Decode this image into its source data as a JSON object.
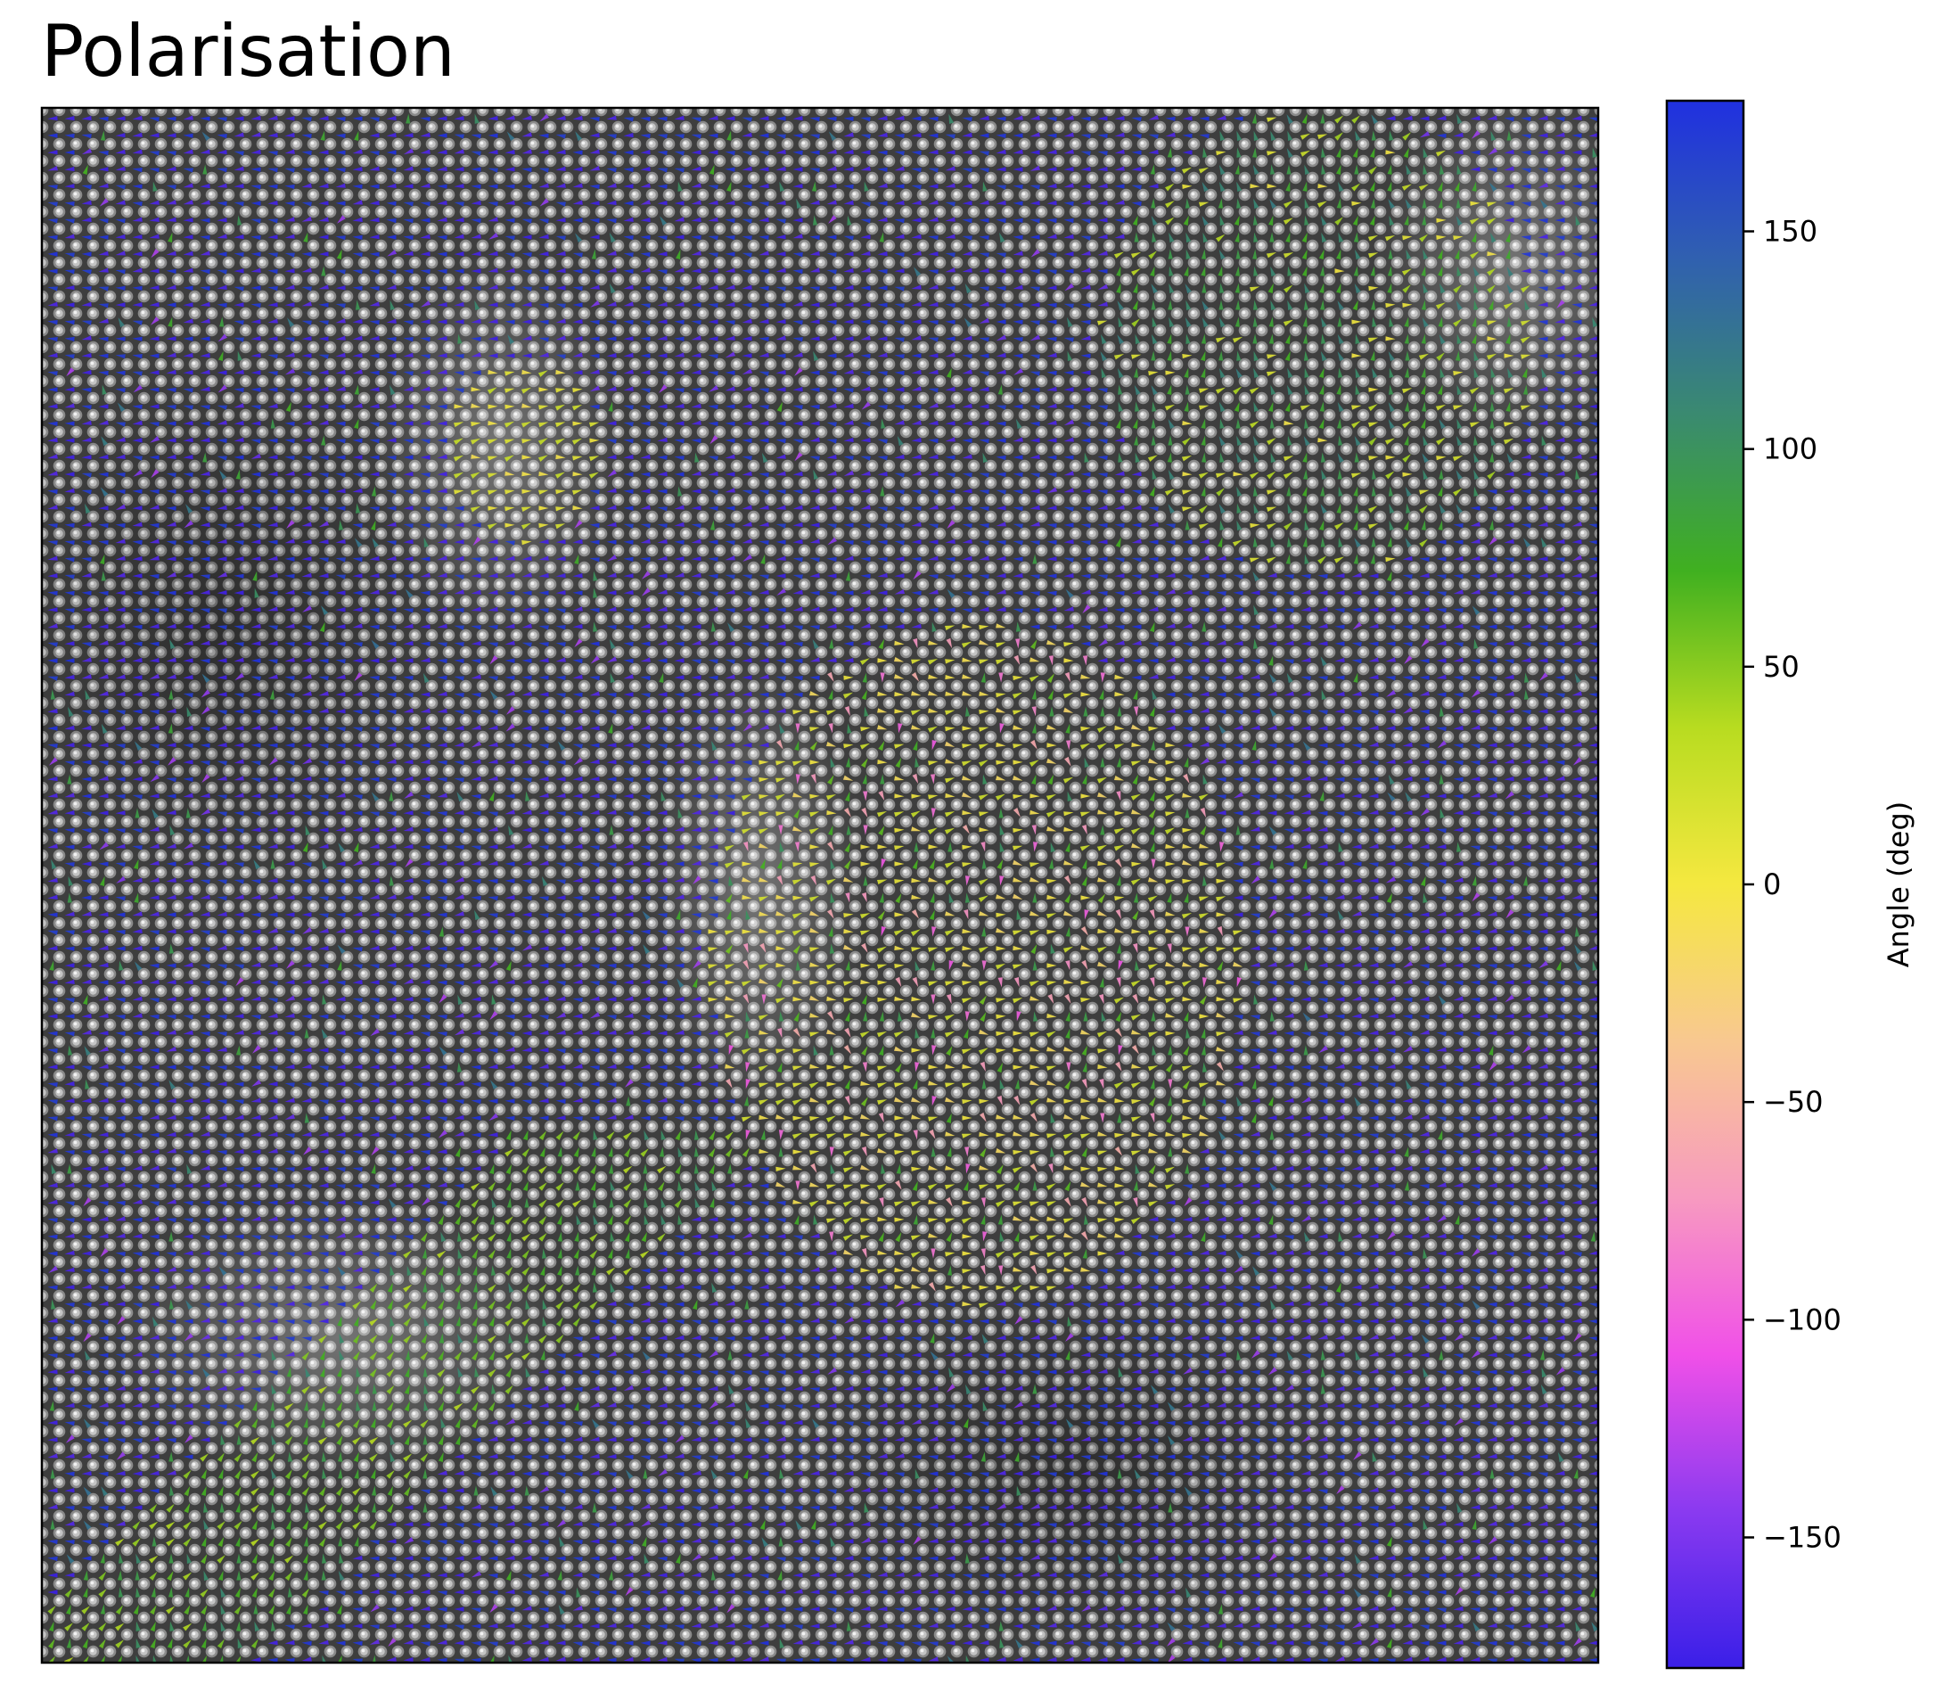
{
  "chart_data": {
    "type": "quiver",
    "title": "Polarisation",
    "xlabel": "",
    "ylabel": "",
    "colorbar": {
      "label": "Angle (deg)",
      "range": [
        -180,
        180
      ],
      "ticks": [
        150,
        100,
        50,
        0,
        -50,
        -100,
        -150
      ],
      "tick_labels": [
        "150",
        "100",
        "50",
        "0",
        "−50",
        "−100",
        "−150"
      ],
      "colors": [
        "#3a1fe8",
        "#8a3af0",
        "#f050e8",
        "#f79ac0",
        "#f8c890",
        "#f5e840",
        "#b8dc20",
        "#40b020",
        "#3a8a70",
        "#3060b0",
        "#2030e0"
      ]
    },
    "axes_ticks_shown": false,
    "background": "grayscale atomic-resolution lattice image",
    "vector_field_summary": {
      "arrow_angle_range_deg": [
        -180,
        180
      ],
      "arrow_length": "short, roughly uniform",
      "regions": [
        {
          "location": "most of the image",
          "dominant_angle_deg": 180,
          "color_name": "blue"
        },
        {
          "location": "centre-right",
          "dominant_angle_deg": 0,
          "color_name": "yellow"
        },
        {
          "location": "lower-left diagonal band",
          "dominant_angle_deg": 60,
          "color_name": "yellow-green"
        },
        {
          "location": "upper-right",
          "dominant_angle_deg": 90,
          "color_name": "green"
        },
        {
          "location": "scattered in yellow regions",
          "dominant_angle_deg": -80,
          "color_name": "pink/magenta"
        }
      ]
    }
  }
}
